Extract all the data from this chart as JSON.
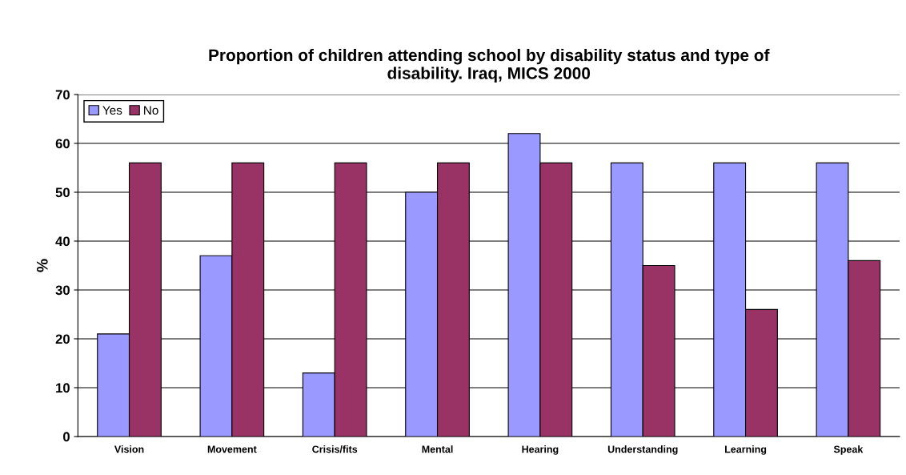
{
  "chart_data": {
    "type": "bar",
    "title": "Proportion of children attending school by disability status and type of\ndisability. Iraq, MICS 2000",
    "ylabel": "%",
    "categories": [
      "Vision",
      "Movement",
      "Crisis/fits",
      "Mental",
      "Hearing",
      "Understanding",
      "Learning",
      "Speak"
    ],
    "series": [
      {
        "name": "Yes",
        "color": "#9999ff",
        "values": [
          21,
          37,
          13,
          50,
          62,
          56,
          56,
          56
        ]
      },
      {
        "name": "No",
        "color": "#993366",
        "values": [
          56,
          56,
          56,
          56,
          56,
          35,
          26,
          36
        ]
      }
    ],
    "ylim": [
      0,
      70
    ],
    "yticks": [
      0,
      10,
      20,
      30,
      40,
      50,
      60,
      70
    ],
    "grid": "y",
    "legend": "top left"
  }
}
